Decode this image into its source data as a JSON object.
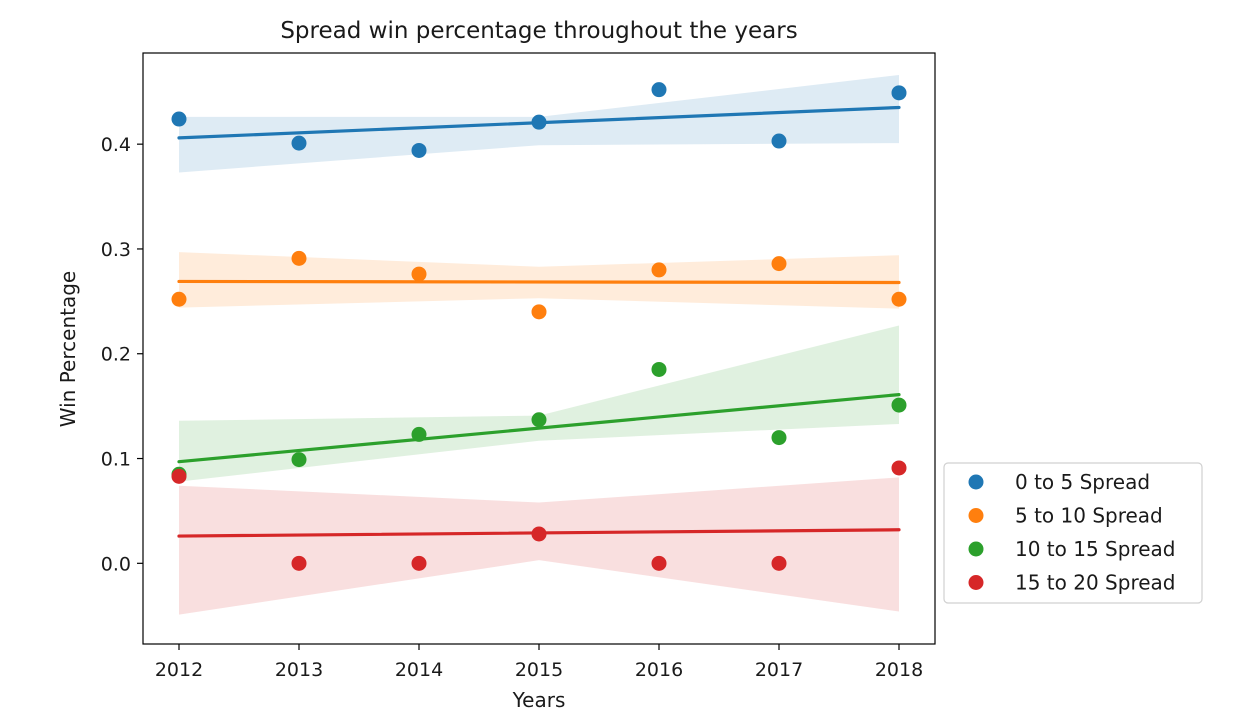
{
  "chart_data": {
    "type": "scatter",
    "title": "Spread win percentage throughout the years",
    "xlabel": "Years",
    "ylabel": "Win Percentage",
    "xlim": [
      2011.7,
      2018.3
    ],
    "ylim": [
      -0.077,
      0.487
    ],
    "x_ticks": [
      "2012",
      "2013",
      "2014",
      "2015",
      "2016",
      "2017",
      "2018"
    ],
    "y_ticks": [
      "0.0",
      "0.1",
      "0.2",
      "0.3",
      "0.4"
    ],
    "grid": false,
    "legend_position": "outside-right",
    "series": [
      {
        "name": "0 to 5 Spread",
        "color": "#1f77b4",
        "x": [
          2012,
          2013,
          2014,
          2015,
          2016,
          2017,
          2018
        ],
        "y": [
          0.424,
          0.401,
          0.394,
          0.421,
          0.452,
          0.403,
          0.449
        ],
        "trend": [
          0.406,
          0.435
        ],
        "ci_lower": [
          0.373,
          0.399,
          0.401
        ],
        "ci_upper": [
          0.426,
          0.426,
          0.466
        ]
      },
      {
        "name": "5 to 10 Spread",
        "color": "#ff7f0e",
        "x": [
          2012,
          2013,
          2014,
          2015,
          2016,
          2017,
          2018
        ],
        "y": [
          0.252,
          0.291,
          0.276,
          0.24,
          0.28,
          0.286,
          0.252
        ],
        "trend": [
          0.269,
          0.268
        ],
        "ci_lower": [
          0.244,
          0.253,
          0.243
        ],
        "ci_upper": [
          0.297,
          0.283,
          0.294
        ]
      },
      {
        "name": "10 to 15 Spread",
        "color": "#2ca02c",
        "x": [
          2012,
          2013,
          2014,
          2015,
          2016,
          2017,
          2018
        ],
        "y": [
          0.085,
          0.099,
          0.123,
          0.137,
          0.185,
          0.12,
          0.151
        ],
        "trend": [
          0.097,
          0.161
        ],
        "ci_lower": [
          0.078,
          0.117,
          0.133
        ],
        "ci_upper": [
          0.136,
          0.141,
          0.227
        ]
      },
      {
        "name": "15 to 20 Spread",
        "color": "#d62728",
        "x": [
          2012,
          2013,
          2014,
          2015,
          2016,
          2017,
          2018
        ],
        "y": [
          0.083,
          0.0,
          0.0,
          0.028,
          0.0,
          0.0,
          0.091
        ],
        "trend": [
          0.026,
          0.032
        ],
        "ci_lower": [
          -0.049,
          0.003,
          -0.046
        ],
        "ci_upper": [
          0.074,
          0.058,
          0.082
        ]
      }
    ]
  }
}
